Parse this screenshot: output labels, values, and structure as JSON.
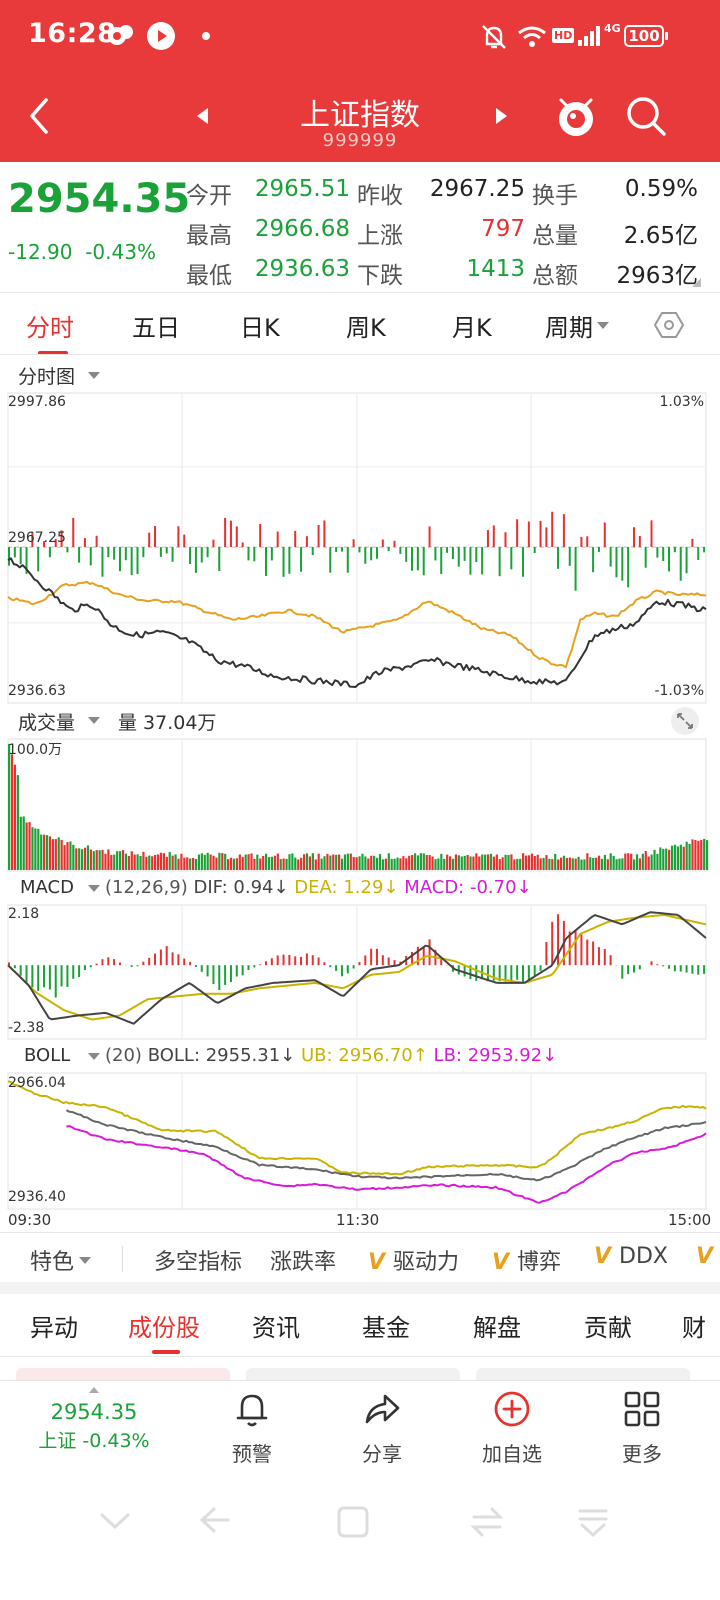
{
  "status_bar": {
    "time": "16:28",
    "battery": "100",
    "network": "4G",
    "hd": "HD"
  },
  "header": {
    "title": "上证指数",
    "code": "999999"
  },
  "quote": {
    "price": "2954.35",
    "change": "-12.90",
    "change_pct": "-0.43%",
    "stats": [
      {
        "label": "今开",
        "value": "2965.51",
        "color": "green"
      },
      {
        "label": "昨收",
        "value": "2967.25",
        "color": "dark"
      },
      {
        "label": "换手",
        "value": "0.59%",
        "color": "dark"
      },
      {
        "label": "最高",
        "value": "2966.68",
        "color": "green"
      },
      {
        "label": "上涨",
        "value": "797",
        "color": "red"
      },
      {
        "label": "总量",
        "value": "2.65亿",
        "color": "dark"
      },
      {
        "label": "最低",
        "value": "2936.63",
        "color": "green"
      },
      {
        "label": "下跌",
        "value": "1413",
        "color": "green"
      },
      {
        "label": "总额",
        "value": "2963亿",
        "color": "dark"
      }
    ]
  },
  "period_tabs": [
    {
      "label": "分时",
      "active": true
    },
    {
      "label": "五日",
      "active": false
    },
    {
      "label": "日K",
      "active": false
    },
    {
      "label": "周K",
      "active": false
    },
    {
      "label": "月K",
      "active": false
    },
    {
      "label": "周期",
      "active": false
    }
  ],
  "intraday": {
    "title": "分时图",
    "y_max": "2997.86",
    "y_mid": "2967.25",
    "y_min": "2936.63",
    "pct_max": "1.03%",
    "pct_min": "-1.03%"
  },
  "volume": {
    "title": "成交量",
    "summary": "量 37.04万",
    "y_max": "100.0万"
  },
  "macd": {
    "title": "MACD",
    "params": "(12,26,9)",
    "dif": "DIF: 0.94↓",
    "dea": "DEA: 1.29↓",
    "macd": "MACD: -0.70↓",
    "y_max": "2.18",
    "y_min": "-2.38"
  },
  "boll": {
    "title": "BOLL",
    "params": "(20)",
    "boll": "BOLL: 2955.31↓",
    "ub": "UB: 2956.70↑",
    "lb": "LB: 2953.92↓",
    "y_max": "2966.04",
    "y_min": "2936.40"
  },
  "time_axis": [
    "09:30",
    "11:30",
    "15:00"
  ],
  "indicator_tabs": {
    "special": "特色",
    "items": [
      {
        "label": "多空指标",
        "vip": false
      },
      {
        "label": "涨跌率",
        "vip": false
      },
      {
        "label": "驱动力",
        "vip": true
      },
      {
        "label": "博弈",
        "vip": true
      },
      {
        "label": "DDX",
        "vip": true
      }
    ]
  },
  "info_tabs": [
    {
      "label": "异动",
      "active": false
    },
    {
      "label": "成份股",
      "active": true
    },
    {
      "label": "资讯",
      "active": false
    },
    {
      "label": "基金",
      "active": false
    },
    {
      "label": "解盘",
      "active": false
    },
    {
      "label": "贡献",
      "active": false
    },
    {
      "label": "财",
      "active": false
    }
  ],
  "bottom_bar": {
    "price": "2954.35",
    "name_change": "上证 -0.43%",
    "buttons": [
      {
        "label": "预警",
        "icon": "bell-icon"
      },
      {
        "label": "分享",
        "icon": "share-icon"
      },
      {
        "label": "加自选",
        "icon": "add-circle-icon"
      },
      {
        "label": "更多",
        "icon": "grid-icon"
      }
    ]
  },
  "colors": {
    "brand": "#e83a3a",
    "up": "#e8312f",
    "down": "#1aa138",
    "avg_line": "#e8a020",
    "macd_dea": "#c8b400",
    "boll_lb": "#d81bd8"
  }
}
